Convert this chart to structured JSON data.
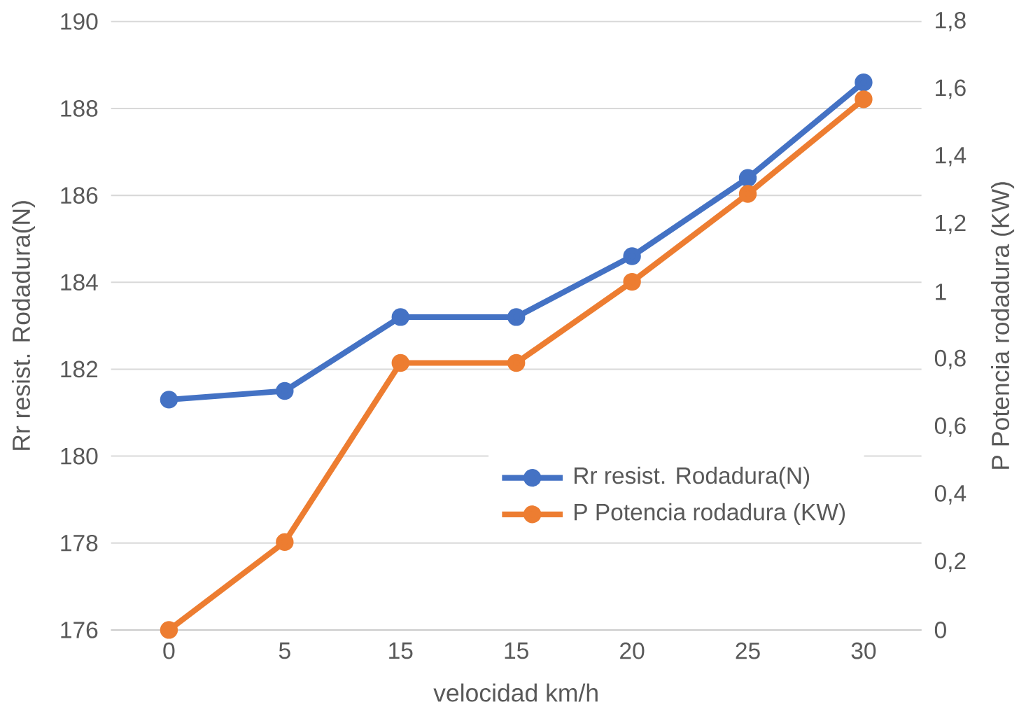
{
  "chart_data": {
    "type": "line",
    "xlabel": "velocidad km/h",
    "ylabel": "Rr resist. Rodadura(N)",
    "y2label": "P Potencia rodadura (KW)",
    "categories": [
      "0",
      "5",
      "15",
      "15",
      "20",
      "25",
      "30"
    ],
    "series": [
      {
        "name": "Rr resist. Rodadura(N)",
        "color": "#4472c4",
        "values": [
          181.3,
          181.5,
          183.2,
          183.2,
          184.6,
          186.4,
          188.6
        ]
      },
      {
        "name": "P Potencia rodadura (KW)",
        "color": "#ed7d31",
        "axis": "y2",
        "values": [
          0,
          0.26,
          0.79,
          0.79,
          1.03,
          1.29,
          1.57
        ]
      }
    ],
    "ylim": [
      176,
      190
    ],
    "yticks": [
      176,
      178,
      180,
      182,
      184,
      186,
      188,
      190
    ],
    "y2lim": [
      0,
      1.8
    ],
    "y2ticks": [
      0,
      {
        "value": 0.2,
        "label": "0,2"
      },
      {
        "value": 0.4,
        "label": "0,4"
      },
      {
        "value": 0.6,
        "label": "0,6"
      },
      {
        "value": 0.8,
        "label": "0,8"
      },
      1,
      {
        "value": 1.2,
        "label": "1,2"
      },
      {
        "value": 1.4,
        "label": "1,4"
      },
      {
        "value": 1.6,
        "label": "1,6"
      },
      {
        "value": 1.8,
        "label": "1,8"
      }
    ],
    "grid": "y",
    "legend": "right",
    "marker": "circle",
    "line_style": "solid"
  }
}
